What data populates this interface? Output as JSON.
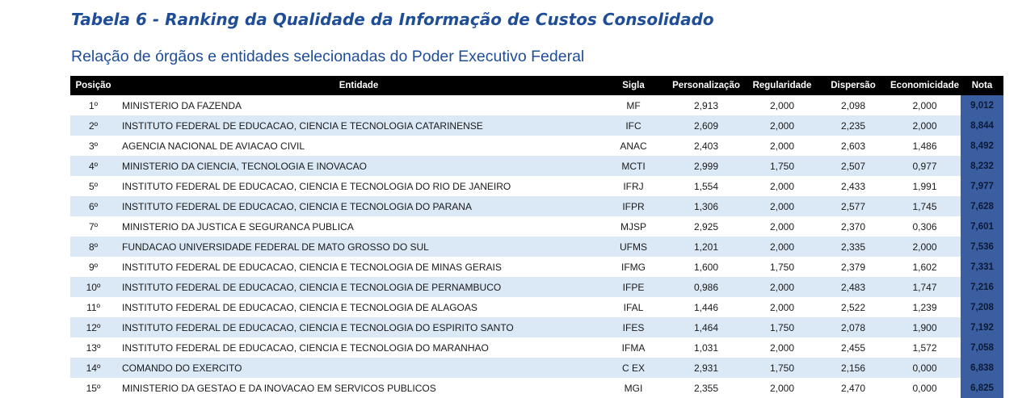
{
  "title": "Tabela 6 - Ranking da Qualidade da Informação de Custos Consolidado",
  "subtitle": "Relação de órgãos e entidades selecionadas do Poder Executivo Federal",
  "table": {
    "headers": [
      "Posição",
      "Entidade",
      "Sigla",
      "Personalização",
      "Regularidade",
      "Dispersão",
      "Economicidade",
      "Nota"
    ],
    "rows": [
      [
        "1º",
        "MINISTERIO DA FAZENDA",
        "MF",
        "2,913",
        "2,000",
        "2,098",
        "2,000",
        "9,012"
      ],
      [
        "2º",
        "INSTITUTO FEDERAL DE EDUCACAO, CIENCIA E TECNOLOGIA CATARINENSE",
        "IFC",
        "2,609",
        "2,000",
        "2,235",
        "2,000",
        "8,844"
      ],
      [
        "3º",
        "AGENCIA NACIONAL DE AVIACAO CIVIL",
        "ANAC",
        "2,403",
        "2,000",
        "2,603",
        "1,486",
        "8,492"
      ],
      [
        "4º",
        "MINISTERIO DA CIENCIA, TECNOLOGIA E INOVACAO",
        "MCTI",
        "2,999",
        "1,750",
        "2,507",
        "0,977",
        "8,232"
      ],
      [
        "5º",
        "INSTITUTO FEDERAL DE EDUCACAO, CIENCIA E TECNOLOGIA DO RIO DE JANEIRO",
        "IFRJ",
        "1,554",
        "2,000",
        "2,433",
        "1,991",
        "7,977"
      ],
      [
        "6º",
        "INSTITUTO FEDERAL DE EDUCACAO, CIENCIA E TECNOLOGIA DO PARANA",
        "IFPR",
        "1,306",
        "2,000",
        "2,577",
        "1,745",
        "7,628"
      ],
      [
        "7º",
        "MINISTERIO DA JUSTICA E SEGURANCA PUBLICA",
        "MJSP",
        "2,925",
        "2,000",
        "2,370",
        "0,306",
        "7,601"
      ],
      [
        "8º",
        "FUNDACAO UNIVERSIDADE FEDERAL DE MATO GROSSO DO SUL",
        "UFMS",
        "1,201",
        "2,000",
        "2,335",
        "2,000",
        "7,536"
      ],
      [
        "9º",
        "INSTITUTO FEDERAL DE EDUCACAO, CIENCIA E TECNOLOGIA DE MINAS GERAIS",
        "IFMG",
        "1,600",
        "1,750",
        "2,379",
        "1,602",
        "7,331"
      ],
      [
        "10º",
        "INSTITUTO FEDERAL DE EDUCACAO, CIENCIA E TECNOLOGIA DE PERNAMBUCO",
        "IFPE",
        "0,986",
        "2,000",
        "2,483",
        "1,747",
        "7,216"
      ],
      [
        "11º",
        "INSTITUTO FEDERAL DE EDUCACAO, CIENCIA E TECNOLOGIA DE ALAGOAS",
        "IFAL",
        "1,446",
        "2,000",
        "2,522",
        "1,239",
        "7,208"
      ],
      [
        "12º",
        "INSTITUTO FEDERAL DE EDUCACAO, CIENCIA E TECNOLOGIA DO ESPIRITO SANTO",
        "IFES",
        "1,464",
        "1,750",
        "2,078",
        "1,900",
        "7,192"
      ],
      [
        "13º",
        "INSTITUTO FEDERAL DE EDUCACAO, CIENCIA E TECNOLOGIA DO MARANHAO",
        "IFMA",
        "1,031",
        "2,000",
        "2,455",
        "1,572",
        "7,058"
      ],
      [
        "14º",
        "COMANDO DO EXERCITO",
        "C EX",
        "2,931",
        "1,750",
        "2,156",
        "0,000",
        "6,838"
      ],
      [
        "15º",
        "MINISTERIO DA GESTAO E DA INOVACAO EM SERVICOS PUBLICOS",
        "MGI",
        "2,355",
        "2,000",
        "2,470",
        "0,000",
        "6,825"
      ]
    ]
  }
}
